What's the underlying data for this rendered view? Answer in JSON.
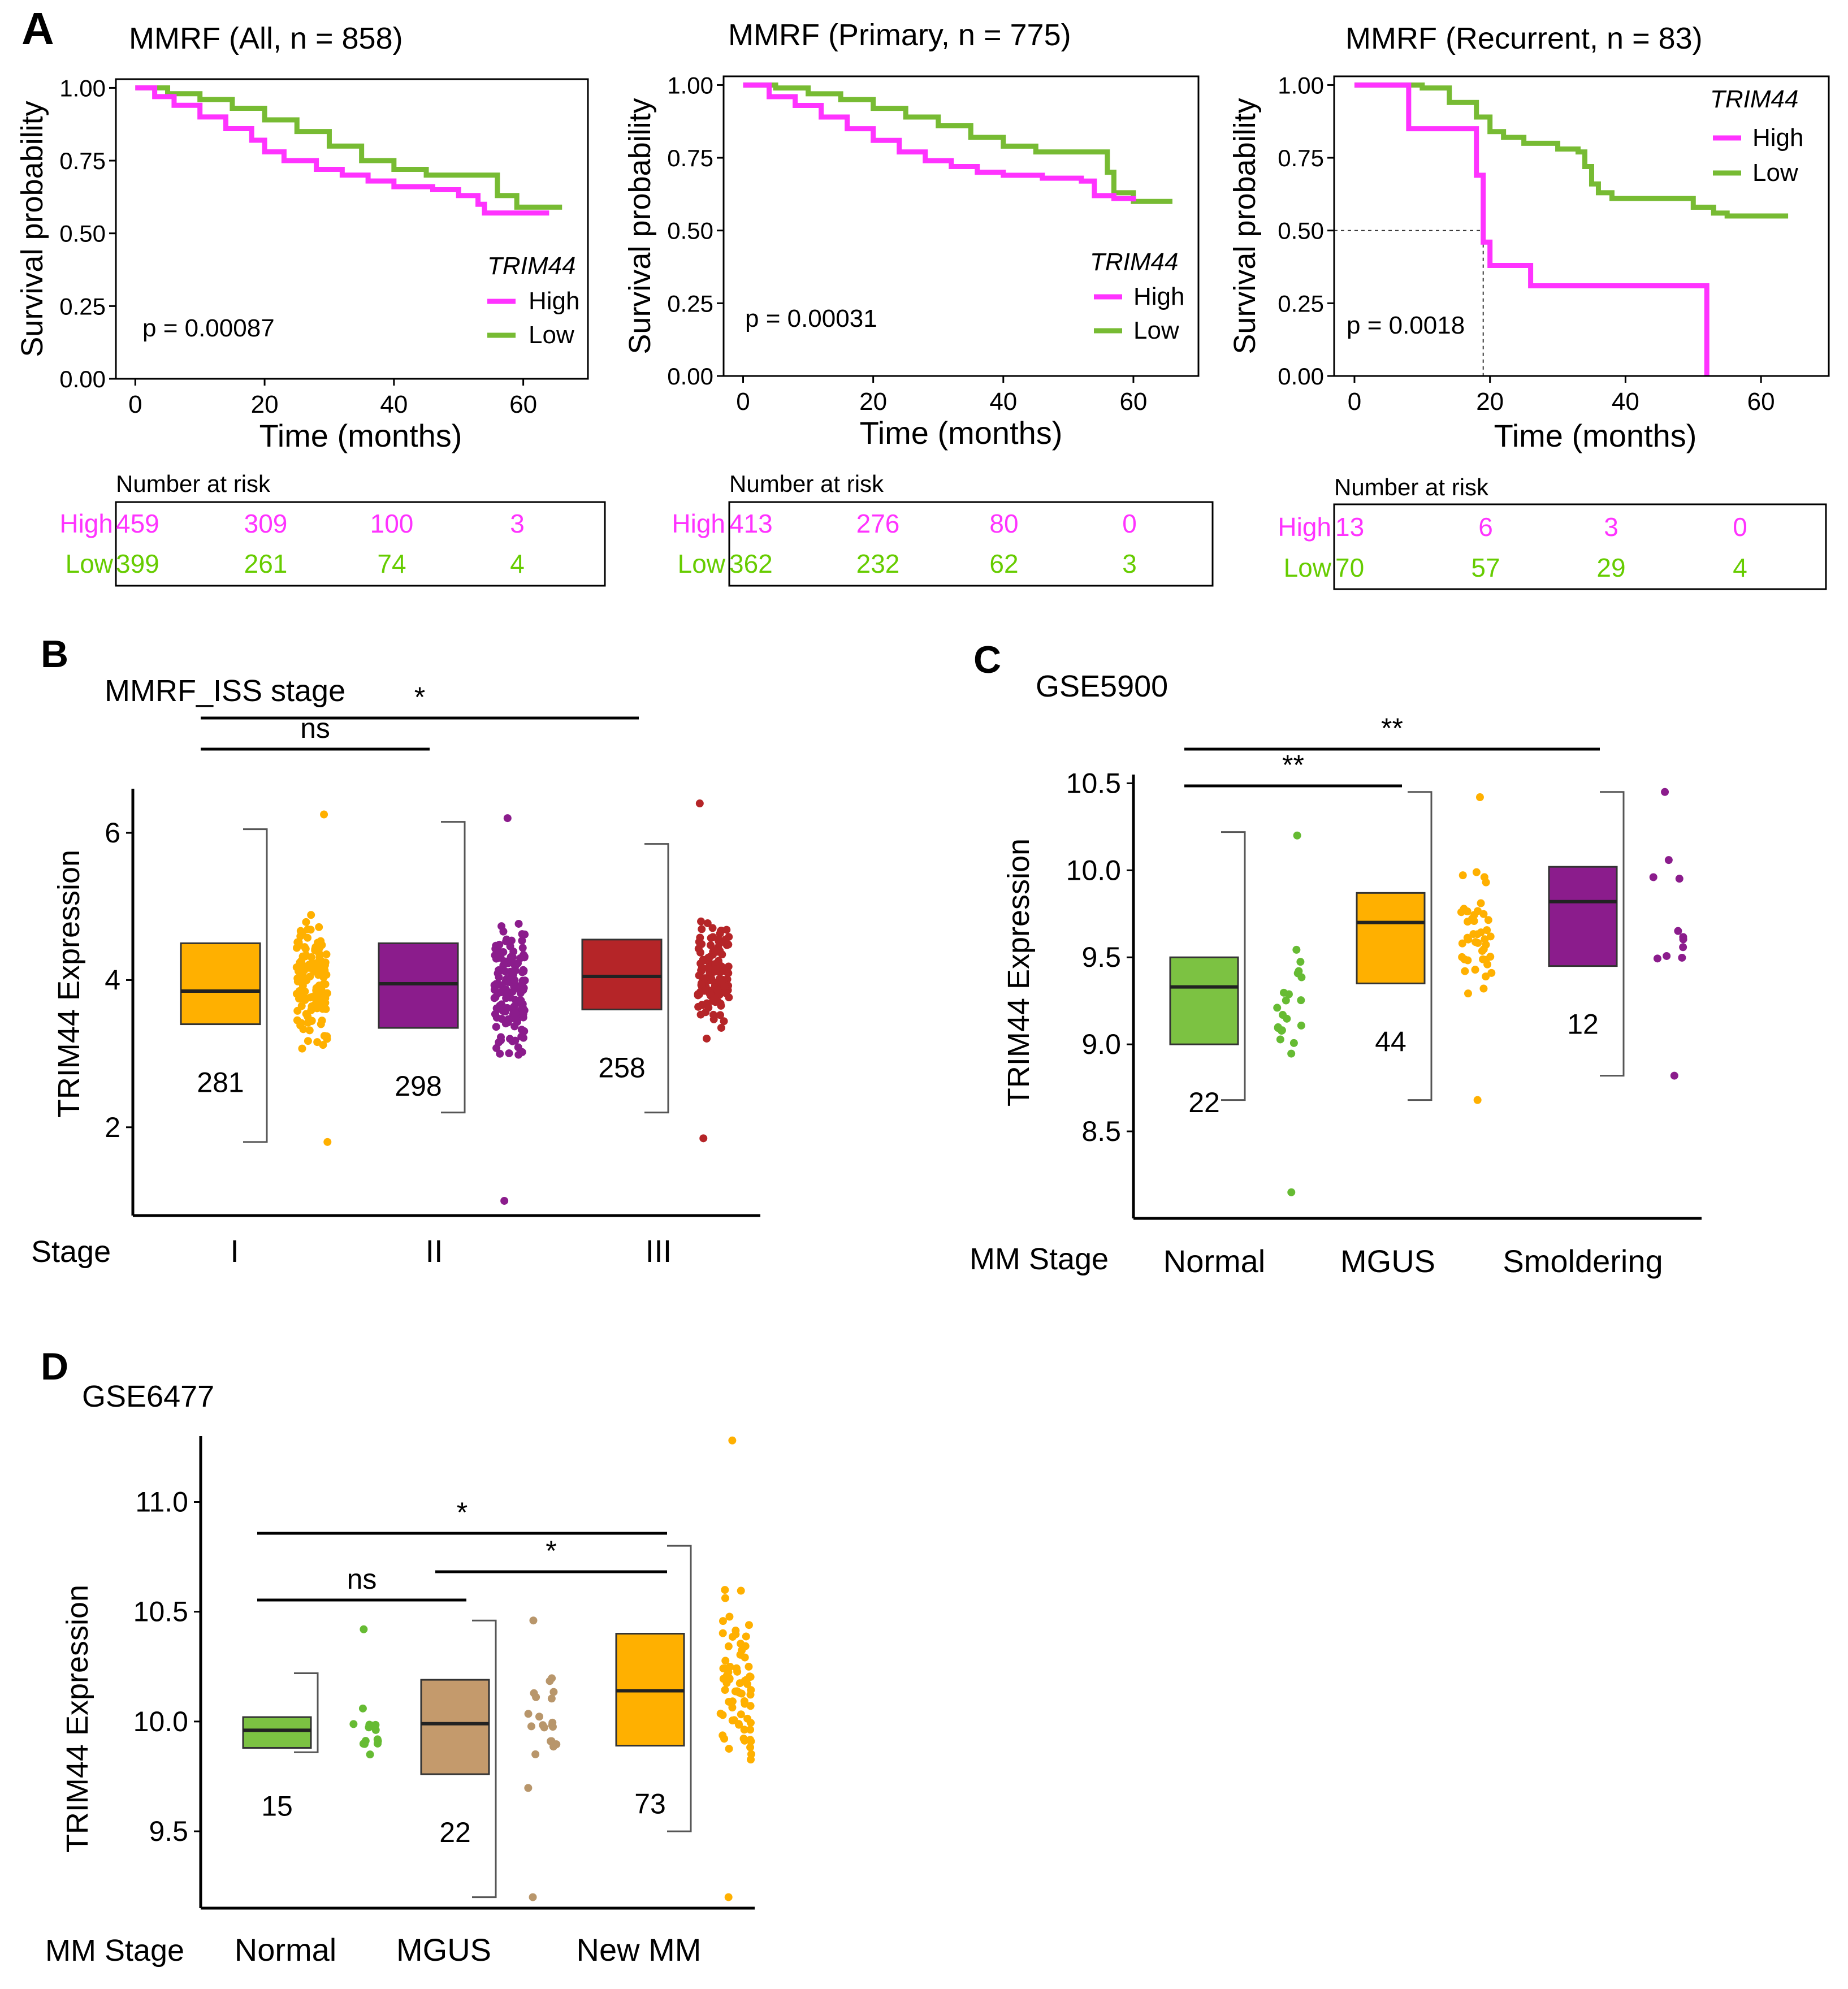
{
  "colors": {
    "high": "#FF33FF",
    "low_line": "#77BB33",
    "low_text": "#66CC00",
    "green_box": "#7CC242",
    "green_dot": "#66BB33",
    "orange": "#FFB000",
    "purple": "#8B1C8C",
    "red": "#B52528",
    "tan": "#C49A6C",
    "tan_dot": "#B8966B",
    "axis": "#000000",
    "bracket": "#555555"
  },
  "panel_labels": {
    "a": "A",
    "b": "B",
    "c": "C",
    "d": "D"
  },
  "chart_data": [
    {
      "id": "km_all",
      "type": "line",
      "title": "MMRF (All, n = 858)",
      "xlabel": "Time (months)",
      "ylabel": "Survival probability",
      "xlim": [
        -3,
        70
      ],
      "ylim": [
        0,
        1.03
      ],
      "xticks": [
        "0",
        "20",
        "40",
        "60"
      ],
      "xtick_values": [
        0,
        20,
        40,
        60
      ],
      "yticks": [
        "0.00",
        "0.25",
        "0.50",
        "0.75",
        "1.00"
      ],
      "ytick_values": [
        0,
        0.25,
        0.5,
        0.75,
        1.0
      ],
      "legend_title": "TRIM44",
      "pvalue": "p = 0.00087",
      "series": [
        {
          "name": "High",
          "color_key": "high",
          "points": [
            [
              0,
              1.0
            ],
            [
              3,
              0.97
            ],
            [
              6,
              0.94
            ],
            [
              10,
              0.9
            ],
            [
              14,
              0.86
            ],
            [
              18,
              0.82
            ],
            [
              20,
              0.78
            ],
            [
              23,
              0.75
            ],
            [
              28,
              0.72
            ],
            [
              32,
              0.7
            ],
            [
              36,
              0.68
            ],
            [
              40,
              0.66
            ],
            [
              46,
              0.65
            ],
            [
              50,
              0.63
            ],
            [
              53,
              0.6
            ],
            [
              54,
              0.57
            ],
            [
              64,
              0.57
            ]
          ]
        },
        {
          "name": "Low",
          "color_key": "low_line",
          "points": [
            [
              0,
              1.0
            ],
            [
              5,
              0.98
            ],
            [
              10,
              0.96
            ],
            [
              15,
              0.93
            ],
            [
              20,
              0.89
            ],
            [
              25,
              0.85
            ],
            [
              30,
              0.8
            ],
            [
              35,
              0.75
            ],
            [
              40,
              0.72
            ],
            [
              45,
              0.7
            ],
            [
              54,
              0.7
            ],
            [
              56,
              0.63
            ],
            [
              59,
              0.59
            ],
            [
              66,
              0.59
            ]
          ]
        }
      ],
      "risk": {
        "title": "Number at risk",
        "rows": [
          {
            "label": "High",
            "color_key": "high",
            "values": [
              "459",
              "309",
              "100",
              "3"
            ]
          },
          {
            "label": "Low",
            "color_key": "low_text",
            "values": [
              "399",
              "261",
              "74",
              "4"
            ]
          }
        ]
      }
    },
    {
      "id": "km_primary",
      "type": "line",
      "title": "MMRF (Primary, n = 775)",
      "xlabel": "Time (months)",
      "ylabel": "Survival probability",
      "xlim": [
        -3,
        70
      ],
      "ylim": [
        0,
        1.03
      ],
      "xticks": [
        "0",
        "20",
        "40",
        "60"
      ],
      "xtick_values": [
        0,
        20,
        40,
        60
      ],
      "yticks": [
        "0.00",
        "0.25",
        "0.50",
        "0.75",
        "1.00"
      ],
      "ytick_values": [
        0,
        0.25,
        0.5,
        0.75,
        1.0
      ],
      "legend_title": "TRIM44",
      "pvalue": "p = 0.00031",
      "series": [
        {
          "name": "High",
          "color_key": "high",
          "points": [
            [
              0,
              1.0
            ],
            [
              4,
              0.96
            ],
            [
              8,
              0.93
            ],
            [
              12,
              0.89
            ],
            [
              16,
              0.85
            ],
            [
              20,
              0.81
            ],
            [
              24,
              0.77
            ],
            [
              28,
              0.74
            ],
            [
              32,
              0.72
            ],
            [
              36,
              0.7
            ],
            [
              40,
              0.69
            ],
            [
              46,
              0.68
            ],
            [
              52,
              0.67
            ],
            [
              54,
              0.62
            ],
            [
              57,
              0.61
            ],
            [
              60,
              0.6
            ]
          ]
        },
        {
          "name": "Low",
          "color_key": "low_line",
          "points": [
            [
              0,
              1.0
            ],
            [
              5,
              0.99
            ],
            [
              10,
              0.97
            ],
            [
              15,
              0.95
            ],
            [
              20,
              0.92
            ],
            [
              25,
              0.89
            ],
            [
              30,
              0.86
            ],
            [
              35,
              0.82
            ],
            [
              40,
              0.79
            ],
            [
              45,
              0.77
            ],
            [
              52,
              0.77
            ],
            [
              56,
              0.7
            ],
            [
              57,
              0.63
            ],
            [
              60,
              0.6
            ],
            [
              66,
              0.6
            ]
          ]
        }
      ],
      "risk": {
        "title": "Number at risk",
        "rows": [
          {
            "label": "High",
            "color_key": "high",
            "values": [
              "413",
              "276",
              "80",
              "0"
            ]
          },
          {
            "label": "Low",
            "color_key": "low_text",
            "values": [
              "362",
              "232",
              "62",
              "3"
            ]
          }
        ]
      }
    },
    {
      "id": "km_recurrent",
      "type": "line",
      "title": "MMRF (Recurrent, n = 83)",
      "xlabel": "Time (months)",
      "ylabel": "Survival probability",
      "xlim": [
        -3,
        70
      ],
      "ylim": [
        0,
        1.03
      ],
      "xticks": [
        "0",
        "20",
        "40",
        "60"
      ],
      "xtick_values": [
        0,
        20,
        40,
        60
      ],
      "yticks": [
        "0.00",
        "0.25",
        "0.50",
        "0.75",
        "1.00"
      ],
      "ytick_values": [
        0,
        0.25,
        0.5,
        0.75,
        1.0
      ],
      "legend_title": "TRIM44",
      "pvalue": "p = 0.0018",
      "median_marker": {
        "x": 19,
        "y": 0.5
      },
      "series": [
        {
          "name": "High",
          "color_key": "high",
          "points": [
            [
              0,
              1.0
            ],
            [
              8,
              1.0
            ],
            [
              8,
              0.85
            ],
            [
              18,
              0.85
            ],
            [
              18,
              0.69
            ],
            [
              19,
              0.69
            ],
            [
              19,
              0.46
            ],
            [
              20,
              0.46
            ],
            [
              20,
              0.38
            ],
            [
              26,
              0.38
            ],
            [
              26,
              0.31
            ],
            [
              52,
              0.31
            ],
            [
              52,
              0.0
            ]
          ]
        },
        {
          "name": "Low",
          "color_key": "low_line",
          "points": [
            [
              0,
              1.0
            ],
            [
              8,
              1.0
            ],
            [
              10,
              0.99
            ],
            [
              14,
              0.94
            ],
            [
              18,
              0.89
            ],
            [
              20,
              0.84
            ],
            [
              22,
              0.82
            ],
            [
              25,
              0.8
            ],
            [
              30,
              0.78
            ],
            [
              33,
              0.77
            ],
            [
              34,
              0.72
            ],
            [
              35,
              0.66
            ],
            [
              36,
              0.63
            ],
            [
              38,
              0.61
            ],
            [
              46,
              0.61
            ],
            [
              50,
              0.58
            ],
            [
              53,
              0.56
            ],
            [
              55,
              0.55
            ],
            [
              64,
              0.55
            ]
          ]
        }
      ],
      "risk": {
        "title": "Number at risk",
        "rows": [
          {
            "label": "High",
            "color_key": "high",
            "values": [
              "13",
              "6",
              "3",
              "0"
            ]
          },
          {
            "label": "Low",
            "color_key": "low_text",
            "values": [
              "70",
              "57",
              "29",
              "4"
            ]
          }
        ]
      }
    },
    {
      "id": "box_b",
      "type": "bar",
      "title": "MMRF_ISS stage",
      "ylabel": "TRIM44 Expression",
      "xlabel_prefix": "Stage",
      "ylim": [
        0.8,
        6.6
      ],
      "yticks": [
        "2",
        "4",
        "6"
      ],
      "ytick_values": [
        2,
        4,
        6
      ],
      "groups": [
        {
          "name": "I",
          "n": "281",
          "color_key": "orange",
          "dot_color_key": "orange",
          "q1": 3.4,
          "median": 3.85,
          "q3": 4.5,
          "min": 1.8,
          "max": 6.05,
          "dot_min": 1.8,
          "dot_max": 6.25,
          "dot_count": 130
        },
        {
          "name": "II",
          "n": "298",
          "color_key": "purple",
          "dot_color_key": "purple",
          "q1": 3.35,
          "median": 3.95,
          "q3": 4.5,
          "min": 2.2,
          "max": 6.15,
          "dot_min": 1.0,
          "dot_max": 6.2,
          "dot_count": 140
        },
        {
          "name": "III",
          "n": "258",
          "color_key": "red",
          "dot_color_key": "red",
          "q1": 3.6,
          "median": 4.05,
          "q3": 4.55,
          "min": 2.2,
          "max": 5.85,
          "dot_min": 1.85,
          "dot_max": 6.4,
          "dot_count": 125
        }
      ],
      "comparisons": [
        {
          "from": 0,
          "to": 2,
          "label": "*",
          "level": 1
        },
        {
          "from": 0,
          "to": 1,
          "label": "ns",
          "level": 0
        }
      ]
    },
    {
      "id": "box_c",
      "type": "bar",
      "title": "GSE5900",
      "ylabel": "TRIM44 Expression",
      "xlabel_prefix": "MM Stage",
      "ylim": [
        8.0,
        10.55
      ],
      "yticks": [
        "8.5",
        "9.0",
        "9.5",
        "10.0",
        "10.5"
      ],
      "ytick_values": [
        8.5,
        9.0,
        9.5,
        10.0,
        10.5
      ],
      "groups": [
        {
          "name": "Normal",
          "n": "22",
          "color_key": "green_box",
          "dot_color_key": "green_dot",
          "q1": 9.0,
          "median": 9.33,
          "q3": 9.5,
          "min": 8.68,
          "max": 10.22,
          "dot_min": 8.15,
          "dot_max": 10.2,
          "dot_count": 22
        },
        {
          "name": "MGUS",
          "n": "44",
          "color_key": "orange",
          "dot_color_key": "orange",
          "q1": 9.35,
          "median": 9.7,
          "q3": 9.87,
          "min": 8.68,
          "max": 10.45,
          "dot_min": 8.68,
          "dot_max": 10.42,
          "dot_count": 44
        },
        {
          "name": "Smoldering",
          "n": "12",
          "color_key": "purple",
          "dot_color_key": "purple",
          "q1": 9.45,
          "median": 9.82,
          "q3": 10.02,
          "min": 8.82,
          "max": 10.45,
          "dot_min": 8.82,
          "dot_max": 10.45,
          "dot_count": 12
        }
      ],
      "comparisons": [
        {
          "from": 0,
          "to": 2,
          "label": "**",
          "level": 1
        },
        {
          "from": 0,
          "to": 1,
          "label": "**",
          "level": 0
        }
      ]
    },
    {
      "id": "box_d",
      "type": "bar",
      "title": "GSE6477",
      "ylabel": "TRIM44 Expression",
      "xlabel_prefix": "MM Stage",
      "ylim": [
        9.15,
        11.3
      ],
      "yticks": [
        "9.5",
        "10.0",
        "10.5",
        "11.0"
      ],
      "ytick_values": [
        9.5,
        10.0,
        10.5,
        11.0
      ],
      "groups": [
        {
          "name": "Normal",
          "n": "15",
          "color_key": "green_box",
          "dot_color_key": "green_dot",
          "q1": 9.88,
          "median": 9.96,
          "q3": 10.02,
          "min": 9.86,
          "max": 10.22,
          "dot_min": 9.85,
          "dot_max": 10.42,
          "dot_count": 15
        },
        {
          "name": "MGUS",
          "n": "22",
          "color_key": "tan",
          "dot_color_key": "tan_dot",
          "q1": 9.76,
          "median": 9.99,
          "q3": 10.19,
          "min": 9.2,
          "max": 10.46,
          "dot_min": 9.2,
          "dot_max": 10.46,
          "dot_count": 22
        },
        {
          "name": "New MM",
          "n": "73",
          "color_key": "orange",
          "dot_color_key": "orange",
          "q1": 9.89,
          "median": 10.14,
          "q3": 10.4,
          "min": 9.5,
          "max": 10.8,
          "dot_min": 9.2,
          "dot_max": 11.28,
          "dot_count": 73
        }
      ],
      "comparisons": [
        {
          "from": 0,
          "to": 2,
          "label": "*",
          "level": 2
        },
        {
          "from": 1,
          "to": 2,
          "label": "*",
          "level": 1
        },
        {
          "from": 0,
          "to": 1,
          "label": "ns",
          "level": 0
        }
      ]
    }
  ]
}
